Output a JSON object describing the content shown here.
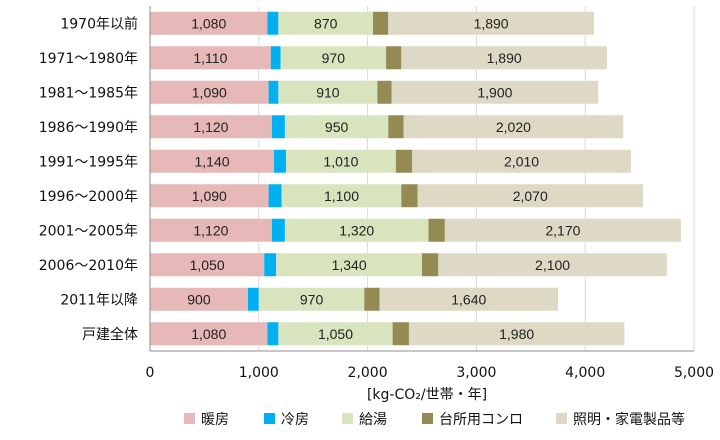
{
  "chart_data": {
    "type": "bar",
    "orientation": "horizontal",
    "stacked": true,
    "categories": [
      "1970年以前",
      "1971～1980年",
      "1981～1985年",
      "1986～1990年",
      "1991～1995年",
      "1996～2000年",
      "2001～2005年",
      "2006～2010年",
      "2011年以降",
      "戸建全体"
    ],
    "series": [
      {
        "name": "暖房",
        "color": "#e6b8b7",
        "values": [
          1080,
          1110,
          1090,
          1120,
          1140,
          1090,
          1120,
          1050,
          900,
          1080
        ]
      },
      {
        "name": "冷房",
        "color": "#00b0f0",
        "values": [
          100,
          90,
          90,
          120,
          110,
          120,
          120,
          110,
          100,
          100
        ]
      },
      {
        "name": "給湯",
        "color": "#d7e4bd",
        "values": [
          870,
          970,
          910,
          950,
          1010,
          1100,
          1320,
          1340,
          970,
          1050
        ]
      },
      {
        "name": "台所用コンロ",
        "color": "#948a54",
        "values": [
          140,
          140,
          130,
          140,
          150,
          150,
          150,
          150,
          140,
          150
        ]
      },
      {
        "name": "照明・家電製品等",
        "color": "#ddd9c4",
        "values": [
          1890,
          1890,
          1900,
          2020,
          2010,
          2070,
          2170,
          2100,
          1640,
          1980
        ]
      }
    ],
    "value_labels": [
      [
        "1,080",
        "",
        "870",
        "",
        "1,890"
      ],
      [
        "1,110",
        "",
        "970",
        "",
        "1,890"
      ],
      [
        "1,090",
        "",
        "910",
        "",
        "1,900"
      ],
      [
        "1,120",
        "",
        "950",
        "",
        "2,020"
      ],
      [
        "1,140",
        "",
        "1,010",
        "",
        "2,010"
      ],
      [
        "1,090",
        "",
        "1,100",
        "",
        "2,070"
      ],
      [
        "1,120",
        "",
        "1,320",
        "",
        "2,170"
      ],
      [
        "1,050",
        "",
        "1,340",
        "",
        "2,100"
      ],
      [
        "900",
        "",
        "970",
        "",
        "1,640"
      ],
      [
        "1,080",
        "",
        "1,050",
        "",
        "1,980"
      ]
    ],
    "xlabel": "[kg-CO₂/世帯・年]",
    "xlim": [
      0,
      5000
    ],
    "xticks": [
      0,
      1000,
      2000,
      3000,
      4000,
      5000
    ],
    "xtick_labels": [
      "0",
      "1,000",
      "2,000",
      "3,000",
      "4,000",
      "5,000"
    ],
    "grid": "vertical",
    "legend_position": "bottom"
  }
}
